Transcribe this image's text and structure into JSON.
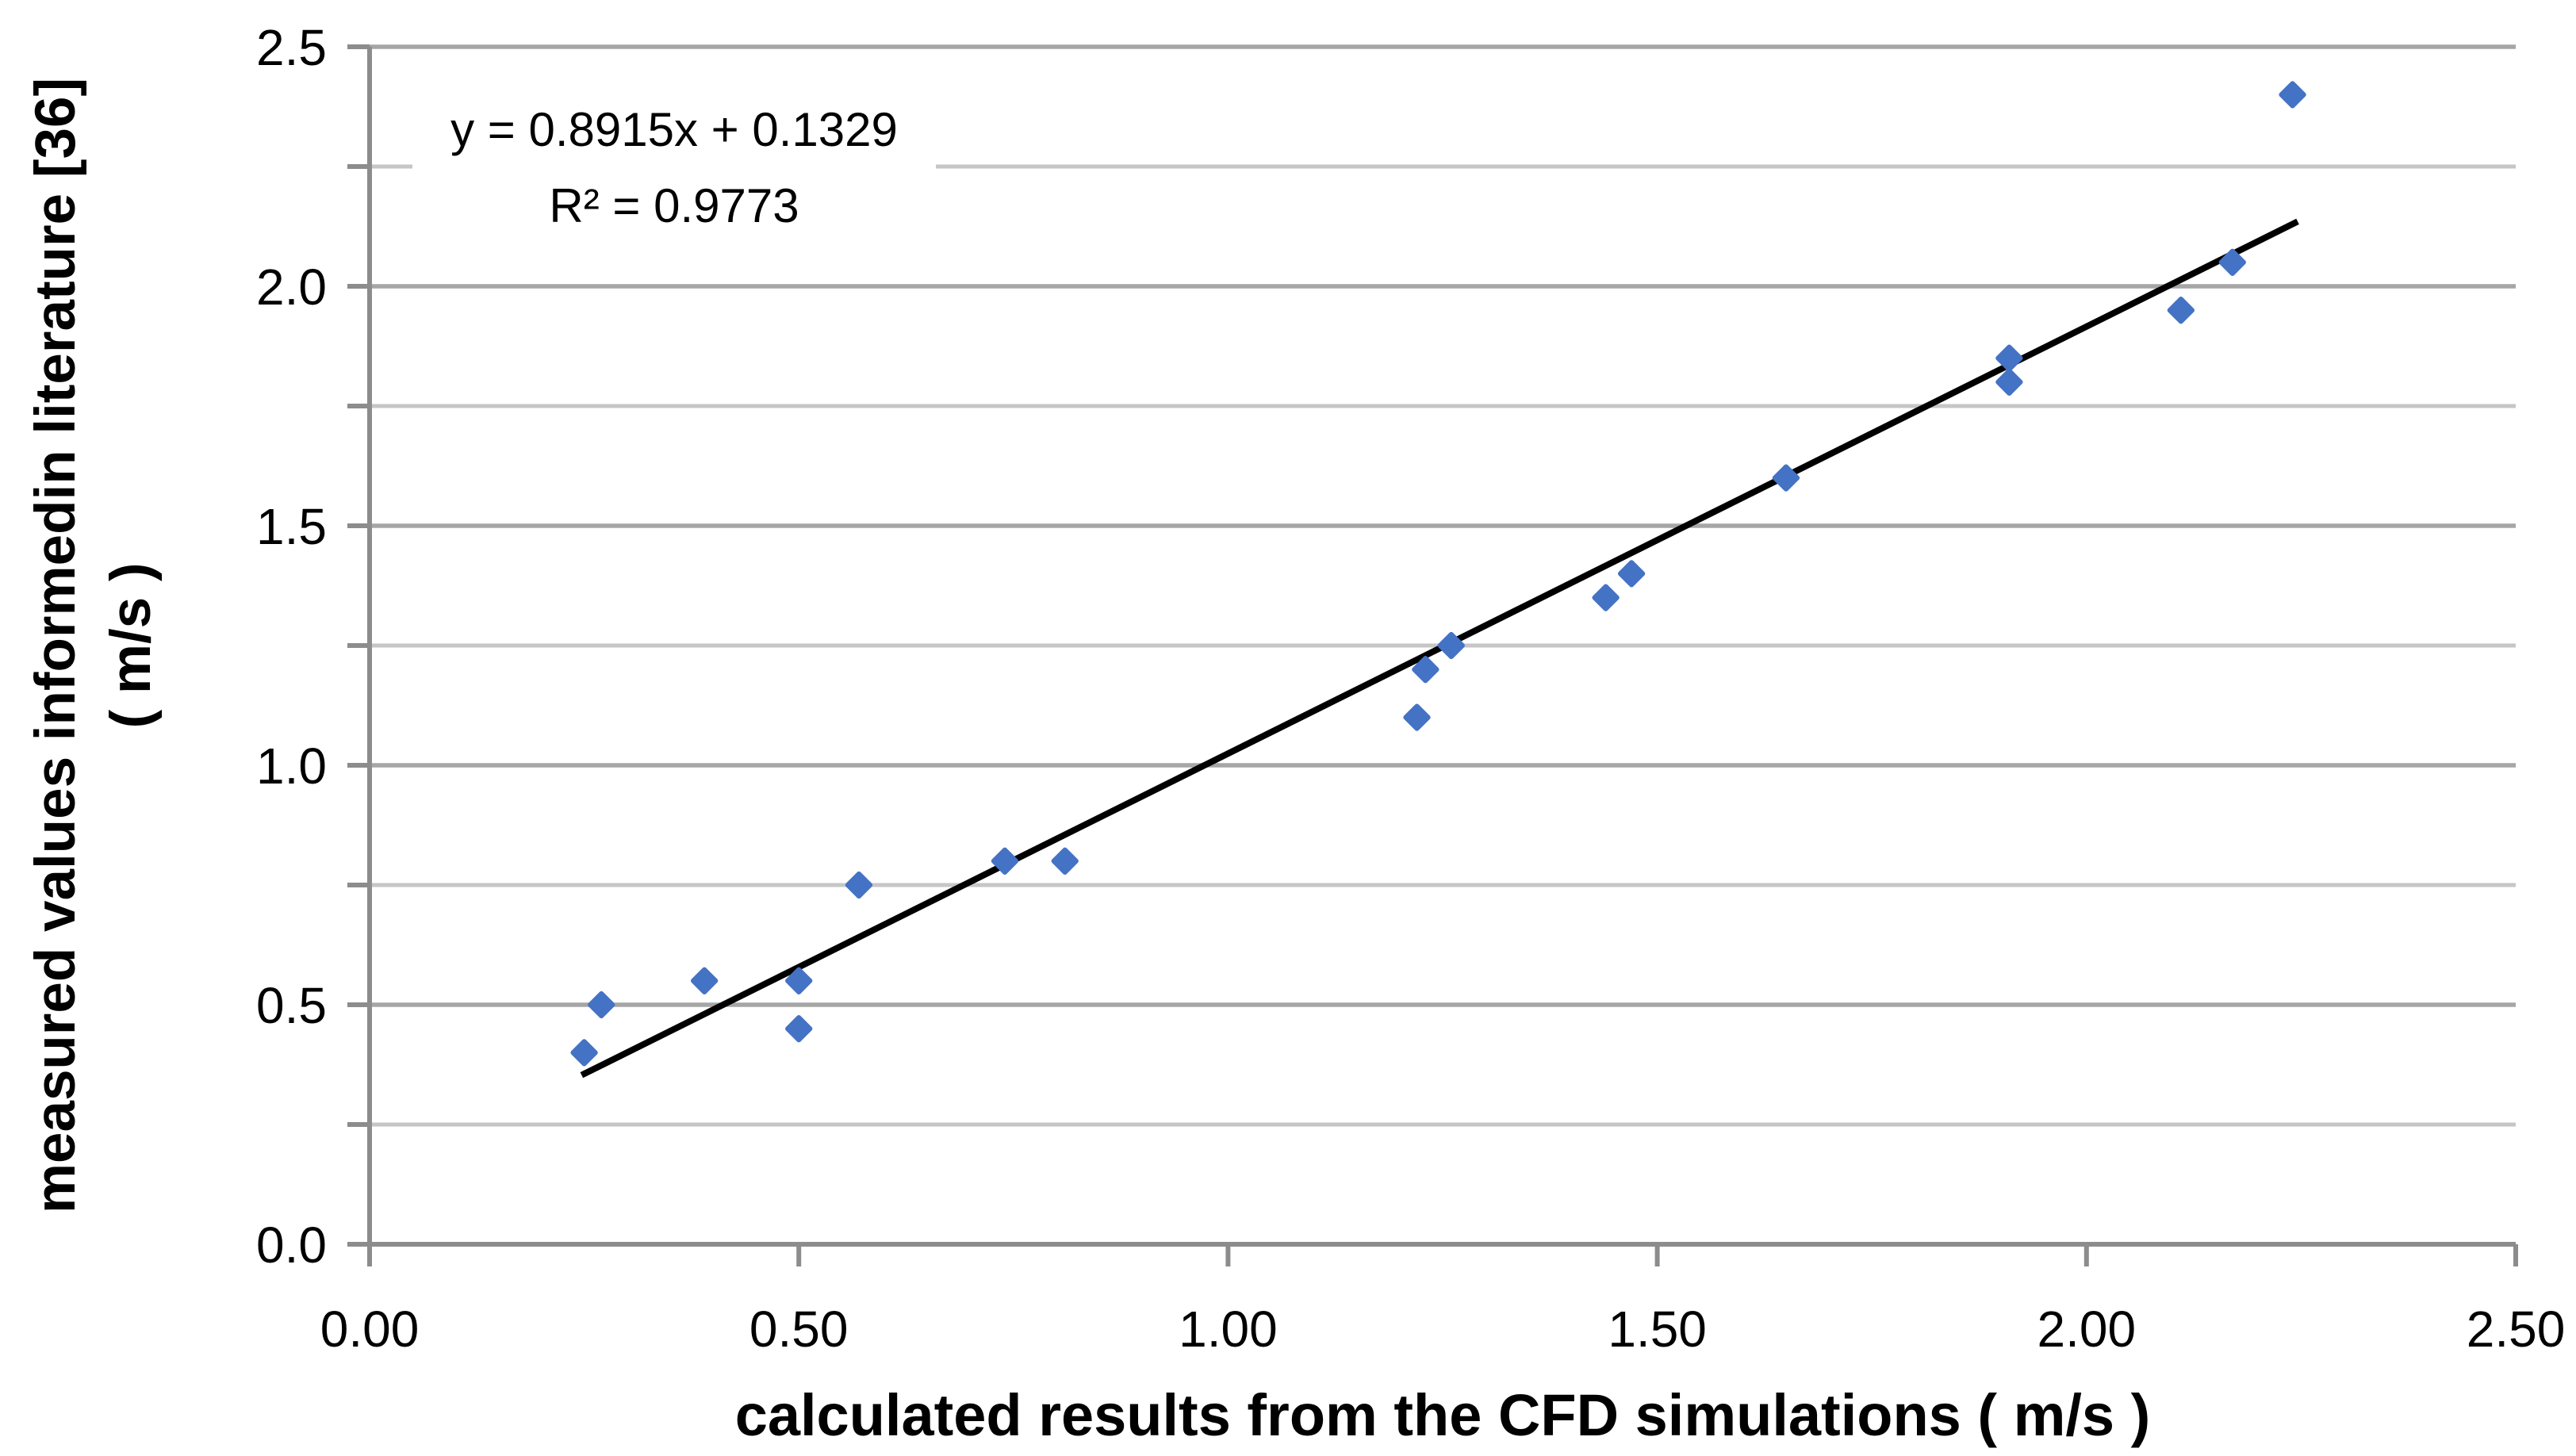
{
  "chart_data": {
    "type": "scatter",
    "title": "",
    "xlabel": "calculated results from the CFD simulations ( m/s )",
    "ylabel_line1": "measured values informedin literature [36]",
    "ylabel_line2": "( m/s )",
    "xlim": [
      0,
      2.5
    ],
    "ylim": [
      0,
      2.5
    ],
    "x_tick_values": [
      0,
      0.5,
      1.0,
      1.5,
      2.0,
      2.5
    ],
    "x_tick_labels": [
      "0.00",
      "0.50",
      "1.00",
      "1.50",
      "2.00",
      "2.50"
    ],
    "y_tick_values": [
      0,
      0.5,
      1.0,
      1.5,
      2.0,
      2.5
    ],
    "y_tick_labels": [
      "0.0",
      "0.5",
      "1.0",
      "1.5",
      "2.0",
      "2.5"
    ],
    "y_minor_tick_values": [
      0.25,
      0.75,
      1.25,
      1.75,
      2.25
    ],
    "minor_gridline_values": [
      0.25,
      0.75,
      1.25,
      1.75,
      2.25
    ],
    "major_gridline_values": [
      0.5,
      1.0,
      1.5,
      2.0,
      2.5
    ],
    "grid": "horizontal gridlines only, legend off",
    "points": [
      [
        0.25,
        0.4
      ],
      [
        0.27,
        0.5
      ],
      [
        0.39,
        0.55
      ],
      [
        0.5,
        0.55
      ],
      [
        0.5,
        0.45
      ],
      [
        0.57,
        0.75
      ],
      [
        0.74,
        0.8
      ],
      [
        0.81,
        0.8
      ],
      [
        1.22,
        1.1
      ],
      [
        1.23,
        1.2
      ],
      [
        1.26,
        1.25
      ],
      [
        1.44,
        1.35
      ],
      [
        1.47,
        1.4
      ],
      [
        1.65,
        1.6
      ],
      [
        1.91,
        1.85
      ],
      [
        1.91,
        1.8
      ],
      [
        2.11,
        1.95
      ],
      [
        2.17,
        2.05
      ],
      [
        2.24,
        2.4
      ]
    ],
    "trendline": {
      "slope": 0.8915,
      "intercept": 0.1329,
      "x_start": 0.247,
      "x_end": 2.246,
      "equation_label": "y = 0.8915x + 0.1329",
      "r2_label": "R² = 0.9773",
      "color": "#000000"
    },
    "marker": {
      "shape": "diamond",
      "color": "#4472C4"
    },
    "colors": {
      "axis": "#8C8C8C",
      "major_grid": "#A6A6A6",
      "minor_grid": "#C6C6C6",
      "text": "#000000",
      "background": "#FFFFFF"
    }
  }
}
